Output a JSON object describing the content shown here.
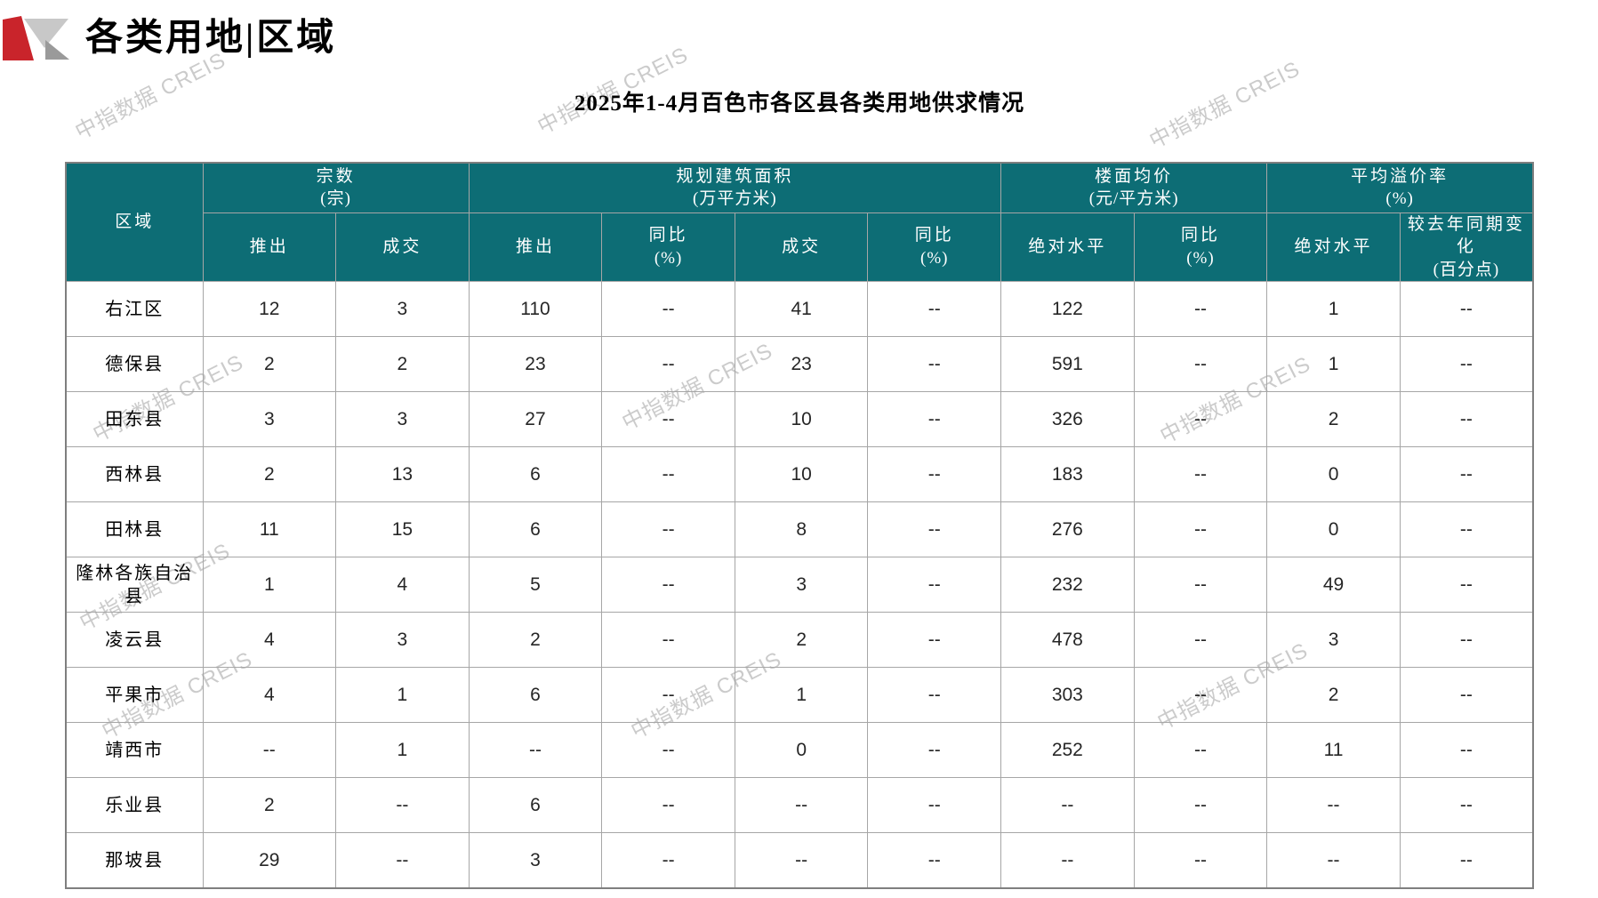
{
  "page_title": "各类用地|区域",
  "table_title": "2025年1-4月百色市各区县各类用地供求情况",
  "watermark": {
    "text": "中指数据 CREIS"
  },
  "theme": {
    "header_bg": "#0d6d75",
    "logo_red": "#c9242b",
    "logo_gray_light": "#c8c8c8",
    "logo_gray_dark": "#9a9a9a",
    "watermark_color": "#bfbfbf"
  },
  "table": {
    "corner_header": "区域",
    "groups": [
      {
        "label": "宗数",
        "unit": "(宗)",
        "cols": [
          {
            "label": "推出",
            "unit": ""
          },
          {
            "label": "成交",
            "unit": ""
          }
        ]
      },
      {
        "label": "规划建筑面积",
        "unit": "(万平方米)",
        "cols": [
          {
            "label": "推出",
            "unit": ""
          },
          {
            "label": "同比",
            "unit": "(%)"
          },
          {
            "label": "成交",
            "unit": ""
          },
          {
            "label": "同比",
            "unit": "(%)"
          }
        ]
      },
      {
        "label": "楼面均价",
        "unit": "(元/平方米)",
        "cols": [
          {
            "label": "绝对水平",
            "unit": ""
          },
          {
            "label": "同比",
            "unit": "(%)"
          }
        ]
      },
      {
        "label": "平均溢价率",
        "unit": "(%)",
        "cols": [
          {
            "label": "绝对水平",
            "unit": ""
          },
          {
            "label": "较去年同期变化",
            "unit": "(百分点)"
          }
        ]
      }
    ],
    "rows": [
      {
        "region": "右江区",
        "values": [
          "12",
          "3",
          "110",
          "--",
          "41",
          "--",
          "122",
          "--",
          "1",
          "--"
        ]
      },
      {
        "region": "德保县",
        "values": [
          "2",
          "2",
          "23",
          "--",
          "23",
          "--",
          "591",
          "--",
          "1",
          "--"
        ]
      },
      {
        "region": "田东县",
        "values": [
          "3",
          "3",
          "27",
          "--",
          "10",
          "--",
          "326",
          "--",
          "2",
          "--"
        ]
      },
      {
        "region": "西林县",
        "values": [
          "2",
          "13",
          "6",
          "--",
          "10",
          "--",
          "183",
          "--",
          "0",
          "--"
        ]
      },
      {
        "region": "田林县",
        "values": [
          "11",
          "15",
          "6",
          "--",
          "8",
          "--",
          "276",
          "--",
          "0",
          "--"
        ]
      },
      {
        "region": "隆林各族自治县",
        "values": [
          "1",
          "4",
          "5",
          "--",
          "3",
          "--",
          "232",
          "--",
          "49",
          "--"
        ]
      },
      {
        "region": "凌云县",
        "values": [
          "4",
          "3",
          "2",
          "--",
          "2",
          "--",
          "478",
          "--",
          "3",
          "--"
        ]
      },
      {
        "region": "平果市",
        "values": [
          "4",
          "1",
          "6",
          "--",
          "1",
          "--",
          "303",
          "--",
          "2",
          "--"
        ]
      },
      {
        "region": "靖西市",
        "values": [
          "--",
          "1",
          "--",
          "--",
          "0",
          "--",
          "252",
          "--",
          "11",
          "--"
        ]
      },
      {
        "region": "乐业县",
        "values": [
          "2",
          "--",
          "6",
          "--",
          "--",
          "--",
          "--",
          "--",
          "--",
          "--"
        ]
      },
      {
        "region": "那坡县",
        "values": [
          "29",
          "--",
          "3",
          "--",
          "--",
          "--",
          "--",
          "--",
          "--",
          "--"
        ]
      }
    ]
  }
}
